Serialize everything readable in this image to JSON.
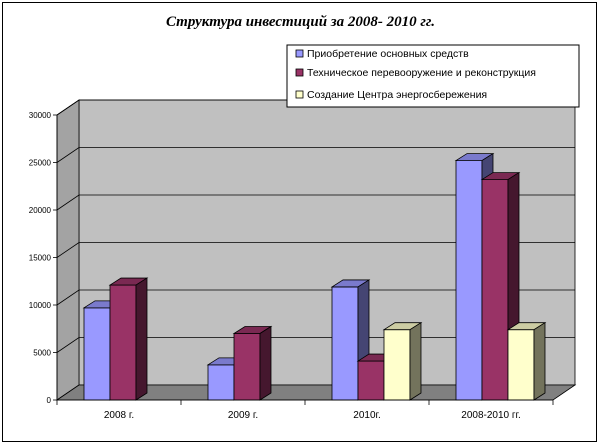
{
  "chart_data": {
    "type": "bar",
    "title": "Структура инвестиций за 2008- 2010 гг.",
    "categories": [
      "2008 г.",
      "2009 г.",
      "2010г.",
      "2008-2010 гг."
    ],
    "series": [
      {
        "name": "Приобретение основных средств",
        "values": [
          9700,
          3700,
          11900,
          25200
        ],
        "color": "#9999ff"
      },
      {
        "name": "Техническое перевооружение и реконструкция",
        "values": [
          12100,
          7000,
          4100,
          23200
        ],
        "color": "#993366"
      },
      {
        "name": "Создание Центра энергосбережения",
        "values": [
          0,
          0,
          7400,
          7400
        ],
        "color": "#ffffcc"
      }
    ],
    "ylim": [
      0,
      30000
    ],
    "yticks": [
      0,
      5000,
      10000,
      15000,
      20000,
      25000,
      30000
    ],
    "grid": true,
    "legend_position": "top-right",
    "wall_color": "#c0c0c0",
    "floor_color": "#808080"
  }
}
